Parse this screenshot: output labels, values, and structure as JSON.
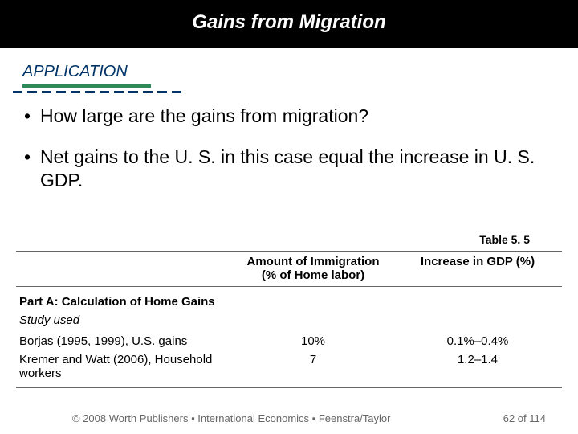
{
  "header": {
    "title": "Gains from Migration"
  },
  "section": {
    "label": "APPLICATION"
  },
  "bullets": [
    "How large are the gains from migration?",
    "Net gains to the U. S. in this case equal the increase in U. S. GDP."
  ],
  "table": {
    "label": "Table 5. 5",
    "col2_header_l1": "Amount of Immigration",
    "col2_header_l2": "(% of Home labor)",
    "col3_header": "Increase in GDP (%)",
    "part_label": "Part A: Calculation of Home Gains",
    "study_used_label": "Study used",
    "rows": [
      {
        "study": "Borjas (1995, 1999), U.S. gains",
        "immigration": "10%",
        "gdp": "0.1%–0.4%"
      },
      {
        "study": "Kremer and Watt (2006), Household workers",
        "immigration": "7",
        "gdp": "1.2–1.4"
      }
    ]
  },
  "footer": {
    "copyright": "© 2008 Worth Publishers ▪ International Economics ▪ Feenstra/Taylor",
    "pager": "62 of 114"
  },
  "colors": {
    "title_band_bg": "#000000",
    "title_text": "#ffffff",
    "section_text": "#003366",
    "green_underline": "#2e8b57",
    "dash_color": "#003366",
    "body_text": "#000000",
    "footer_text": "#666666",
    "rule_color": "#666666",
    "background": "#ffffff"
  }
}
